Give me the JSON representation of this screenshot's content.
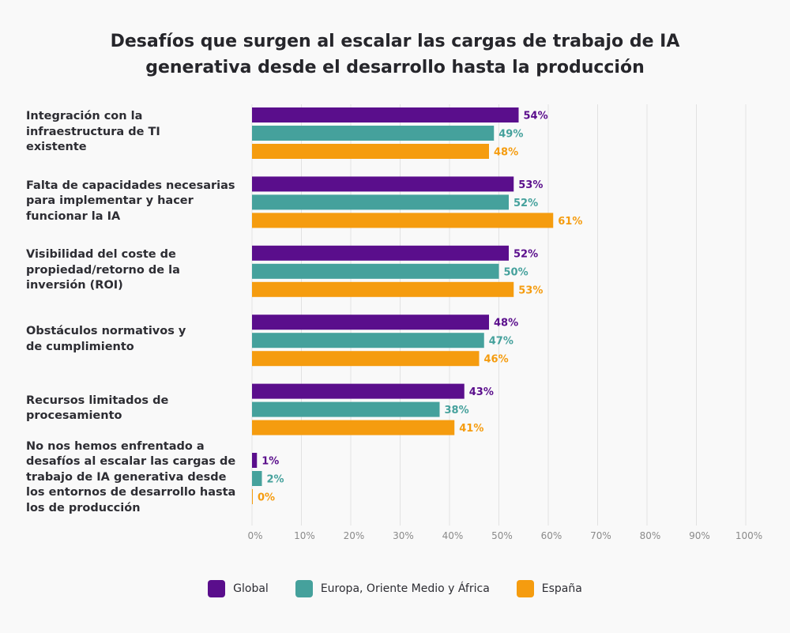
{
  "chart_data": {
    "type": "bar",
    "orientation": "horizontal",
    "title": "Desafíos que surgen al escalar las cargas de trabajo de IA generativa desde el desarrollo hasta la producción",
    "title_lines": [
      "Desafíos que surgen al escalar las cargas de trabajo de IA",
      "generativa desde el desarrollo hasta la producción"
    ],
    "categories": [
      "Integración con la infraestructura de TI existente",
      "Falta de capacidades necesarias para implementar y hacer funcionar la IA",
      "Visibilidad del coste de propiedad/retorno de la inversión (ROI)",
      "Obstáculos normativos y de cumplimiento",
      "Recursos limitados de procesamiento",
      "No nos hemos enfrentado a desafíos al escalar las cargas de trabajo de IA generativa desde los entornos de desarrollo hasta los de producción"
    ],
    "category_lines": [
      [
        "Integración con la",
        "infraestructura de TI",
        "existente"
      ],
      [
        "Falta de capacidades necesarias",
        "para implementar y hacer",
        "funcionar la IA"
      ],
      [
        "Visibilidad del coste de",
        "propiedad/retorno de la",
        "inversión (ROI)"
      ],
      [
        "Obstáculos normativos y",
        "de cumplimiento"
      ],
      [
        "Recursos limitados de",
        "procesamiento"
      ],
      [
        "No nos hemos enfrentado a",
        "desafíos al escalar las cargas de",
        "trabajo de IA generativa desde",
        "los entornos de desarrollo hasta",
        "los de producción"
      ]
    ],
    "series": [
      {
        "name": "Global",
        "color": "#5a0e8c",
        "values": [
          54,
          53,
          52,
          48,
          43,
          1
        ]
      },
      {
        "name": "Europa, Oriente Medio y África",
        "color": "#45a19c",
        "values": [
          49,
          52,
          50,
          47,
          38,
          2
        ]
      },
      {
        "name": "España",
        "color": "#f59c0f",
        "values": [
          48,
          61,
          53,
          46,
          41,
          0
        ]
      }
    ],
    "value_suffix": "%",
    "xlabel": "",
    "ylabel": "",
    "xlim": [
      0,
      100
    ],
    "xticks": [
      0,
      10,
      20,
      30,
      40,
      50,
      60,
      70,
      80,
      90,
      100
    ],
    "xtick_labels": [
      "0%",
      "10%",
      "20%",
      "30%",
      "40%",
      "50%",
      "60%",
      "70%",
      "80%",
      "90%",
      "100%"
    ],
    "grid": true,
    "legend_position": "bottom-center"
  }
}
